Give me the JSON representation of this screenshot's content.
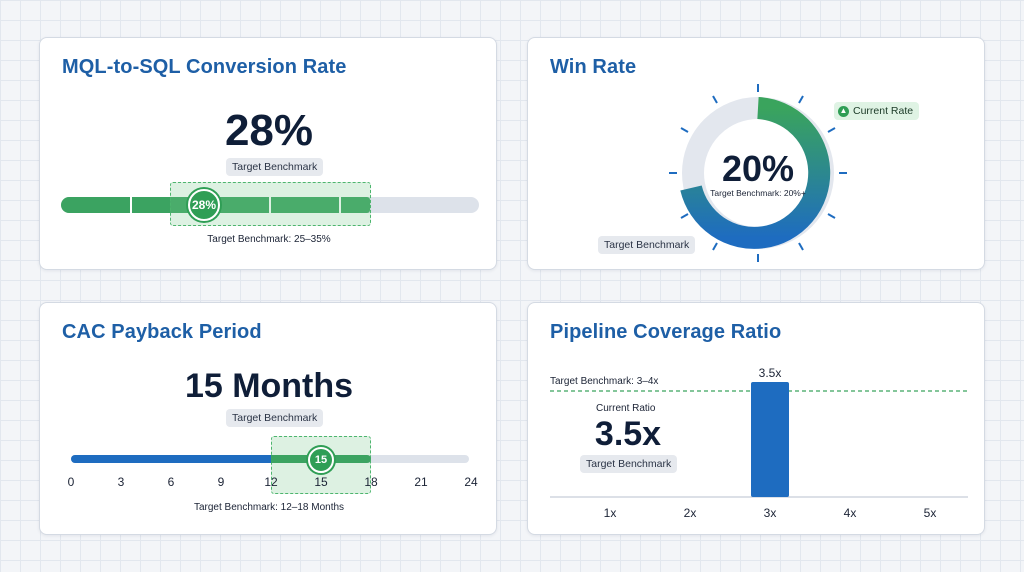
{
  "mql": {
    "title": "MQL-to-SQL Conversion Rate",
    "value": "28%",
    "chip": "Target Benchmark",
    "marker": "28%",
    "caption": "Target Benchmark: 25–35%",
    "value_pct": 28,
    "target_range_pct": [
      25,
      35
    ]
  },
  "win": {
    "title": "Win Rate",
    "value": "20%",
    "sub": "Target Benchmark: 20%+",
    "legend": "Current Rate",
    "chip": "Target Benchmark",
    "value_pct": 20
  },
  "cac": {
    "title": "CAC Payback Period",
    "value": "15 Months",
    "chip": "Target Benchmark",
    "marker": "15",
    "caption": "Target Benchmark: 12–18 Months",
    "ticks": [
      "0",
      "3",
      "6",
      "9",
      "12",
      "15",
      "18",
      "21",
      "24"
    ],
    "value_months": 15,
    "target_range_months": [
      12,
      18
    ],
    "max_months": 24
  },
  "pipe": {
    "title": "Pipeline Coverage Ratio",
    "benchmark_label": "Target Benchmark: 3–4x",
    "current_label": "Current Ratio",
    "value": "3.5x",
    "chip": "Target Benchmark",
    "bar_label": "3.5x"
  },
  "colors": {
    "green": "#2f9e55",
    "blue": "#1e6cc0",
    "track": "#dde2ea",
    "title": "#1e5fa6"
  },
  "chart_data": {
    "type": "bar",
    "title": "Pipeline Coverage Ratio",
    "categories": [
      "1x",
      "2x",
      "3x",
      "4x",
      "5x"
    ],
    "values": [
      null,
      null,
      3.5,
      null,
      null
    ],
    "data_labels": [
      "",
      "",
      "3.5x",
      "",
      ""
    ],
    "reference_line": {
      "label": "Target Benchmark: 3–4x"
    },
    "grid": false
  }
}
